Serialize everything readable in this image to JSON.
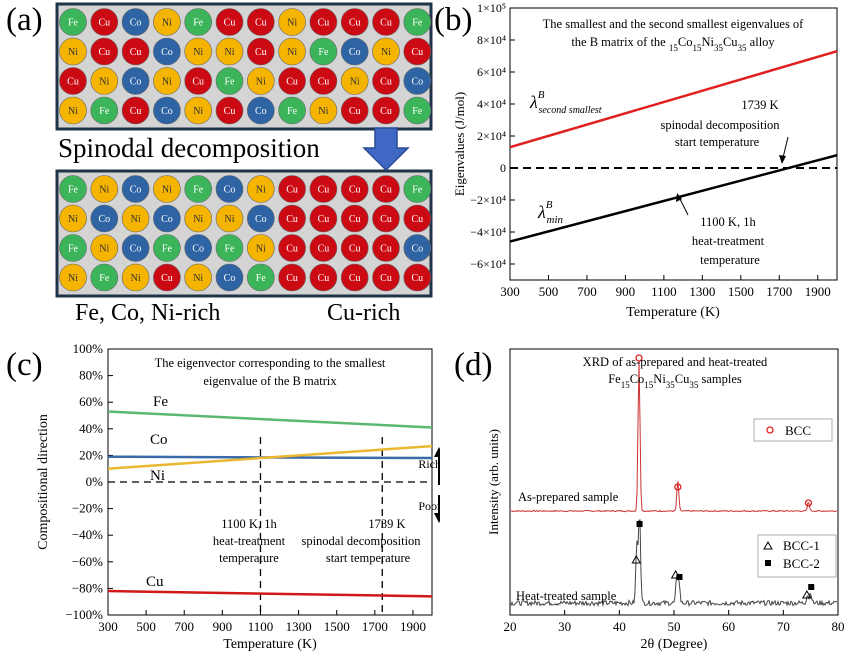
{
  "panel_a": {
    "label": "(a)",
    "top_grid": [
      [
        "Fe",
        "Cu",
        "Co",
        "Ni",
        "Fe",
        "Cu",
        "Cu",
        "Ni",
        "Cu",
        "Cu",
        "Cu",
        "Fe"
      ],
      [
        "Ni",
        "Cu",
        "Cu",
        "Co",
        "Ni",
        "Ni",
        "Cu",
        "Ni",
        "Fe",
        "Co",
        "Ni",
        "Cu"
      ],
      [
        "Cu",
        "Ni",
        "Co",
        "Ni",
        "Cu",
        "Fe",
        "Ni",
        "Cu",
        "Cu",
        "Ni",
        "Cu",
        "Co"
      ],
      [
        "Ni",
        "Fe",
        "Cu",
        "Co",
        "Ni",
        "Cu",
        "Co",
        "Fe",
        "Ni",
        "Cu",
        "Cu",
        "Fe"
      ]
    ],
    "bottom_grid": [
      [
        "Fe",
        "Ni",
        "Co",
        "Ni",
        "Fe",
        "Co",
        "Ni",
        "Cu",
        "Cu",
        "Cu",
        "Cu",
        "Fe"
      ],
      [
        "Ni",
        "Co",
        "Ni",
        "Co",
        "Ni",
        "Ni",
        "Co",
        "Cu",
        "Cu",
        "Cu",
        "Cu",
        "Cu"
      ],
      [
        "Fe",
        "Ni",
        "Co",
        "Fe",
        "Co",
        "Fe",
        "Ni",
        "Cu",
        "Cu",
        "Cu",
        "Cu",
        "Co"
      ],
      [
        "Ni",
        "Fe",
        "Ni",
        "Cu",
        "Ni",
        "Co",
        "Fe",
        "Cu",
        "Cu",
        "Cu",
        "Cu",
        "Cu"
      ]
    ],
    "element_colors": {
      "Fe": "#3cb55a",
      "Cu": "#cc0a14",
      "Co": "#2e63a4",
      "Ni": "#f5b400"
    },
    "arrow_text": "Spinodal decomposition",
    "left_label": "Fe, Co, Ni-rich",
    "right_label": "Cu-rich"
  },
  "chart_data": [
    {
      "panel": "(b)",
      "type": "line",
      "title_line1": "The smallest and the second smallest eigenvalues of",
      "title_line2_prefix": "the B matrix of the Fe",
      "title_line2_suffix": " alloy",
      "title_subs": [
        "15",
        "15",
        "35",
        "35"
      ],
      "title_elems": [
        "Fe",
        "Co",
        "Ni",
        "Cu"
      ],
      "xlabel": "Temperature (K)",
      "ylabel": "Eigenvalues (J/mol)",
      "xlim": [
        300,
        2000
      ],
      "ylim": [
        -70000,
        100000
      ],
      "xticks": [
        "300",
        "500",
        "700",
        "900",
        "1100",
        "1300",
        "1500",
        "1700",
        "1900"
      ],
      "yticks": [
        "−6×10⁴",
        "−4×10⁴",
        "−2×10⁴",
        "0",
        "2×10⁴",
        "4×10⁴",
        "6×10⁴",
        "8×10⁴",
        "1×10⁵"
      ],
      "series": [
        {
          "name": "λ second smallest",
          "color": "#e02020",
          "x": [
            300,
            2000
          ],
          "y": [
            13000,
            73000
          ]
        },
        {
          "name": "λ min",
          "color": "#000000",
          "x": [
            300,
            2000
          ],
          "y": [
            -46000,
            8000
          ]
        }
      ],
      "zero_line": {
        "y": 0,
        "style": "dashed"
      },
      "labels": {
        "lambda2": "λ",
        "lambda2_sup": "B",
        "lambda2_sub": "second smallest",
        "lambdamin": "λ",
        "lambdamin_sup": "B",
        "lambdamin_sub": "min"
      },
      "annotations": [
        {
          "lines": [
            "1739 K",
            "spinodal decomposition",
            "start temperature"
          ]
        },
        {
          "lines": [
            "1100 K, 1h",
            "heat-treatment",
            "temperature"
          ]
        }
      ]
    },
    {
      "panel": "(c)",
      "type": "line",
      "title_line1": "The eigenvector corresponding to the smallest",
      "title_line2": "eigenvalue of the B matrix",
      "xlabel": "Temperature (K)",
      "ylabel": "Compositional direction",
      "xlim": [
        300,
        2000
      ],
      "ylim": [
        -100,
        100
      ],
      "xticks": [
        "300",
        "500",
        "700",
        "900",
        "1100",
        "1300",
        "1500",
        "1700",
        "1900"
      ],
      "yticks": [
        "−100%",
        "−80%",
        "−60%",
        "−40%",
        "−20%",
        "0%",
        "20%",
        "40%",
        "60%",
        "80%",
        "100%"
      ],
      "series": [
        {
          "name": "Fe",
          "color": "#5cb870",
          "x": [
            300,
            2000
          ],
          "y": [
            53,
            41
          ]
        },
        {
          "name": "Co",
          "color": "#3a6aa8",
          "x": [
            300,
            2000
          ],
          "y": [
            19,
            18
          ]
        },
        {
          "name": "Ni",
          "color": "#e9b830",
          "x": [
            300,
            2000
          ],
          "y": [
            10,
            27
          ]
        },
        {
          "name": "Cu",
          "color": "#d01818",
          "x": [
            300,
            2000
          ],
          "y": [
            -82,
            -86
          ]
        }
      ],
      "vlines": [
        1100,
        1739
      ],
      "annotations": [
        {
          "lines": [
            "1100 K, 1h",
            "heat-treatment",
            "temperature"
          ]
        },
        {
          "lines": [
            "1739 K",
            "spinodal decomposition",
            "start temperature"
          ]
        }
      ],
      "rich_label": "Rich",
      "poor_label": "Poor"
    },
    {
      "panel": "(d)",
      "type": "line",
      "title_line1": "XRD of as-prepared and heat-treated",
      "title_line2_suffix": " samples",
      "title_subs": [
        "15",
        "15",
        "35",
        "35"
      ],
      "title_elems": [
        "Fe",
        "Co",
        "Ni",
        "Cu"
      ],
      "xlabel": "2θ (Degree)",
      "ylabel": "Intensity (arb. units)",
      "xlim": [
        20,
        80
      ],
      "xticks": [
        "20",
        "30",
        "40",
        "50",
        "60",
        "70",
        "80"
      ],
      "series": [
        {
          "name": "As-prepared sample",
          "color": "#cc3333",
          "peaks": [
            {
              "x": 43.6,
              "h": 1.0
            },
            {
              "x": 50.7,
              "h": 0.2
            },
            {
              "x": 74.6,
              "h": 0.06
            }
          ]
        },
        {
          "name": "Heat-treated sample",
          "color": "#444444",
          "peaks": [
            {
              "x": 43.2,
              "h": 0.55
            },
            {
              "x": 43.7,
              "h": 0.85
            },
            {
              "x": 50.5,
              "h": 0.22
            },
            {
              "x": 50.9,
              "h": 0.2
            },
            {
              "x": 74.4,
              "h": 0.08
            },
            {
              "x": 75.0,
              "h": 0.1
            }
          ]
        }
      ],
      "legend_top": [
        "BCC"
      ],
      "legend_bottom": [
        "BCC-1",
        "BCC-2"
      ]
    }
  ]
}
